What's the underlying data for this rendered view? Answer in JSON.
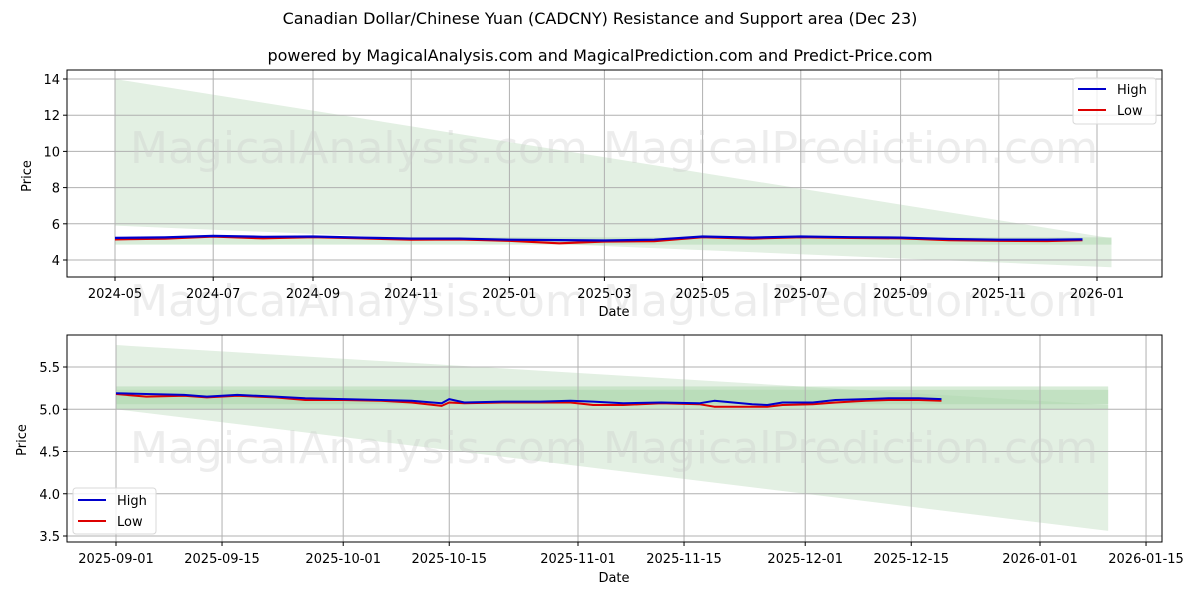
{
  "title": "Canadian Dollar/Chinese Yuan (CADCNY) Resistance and Support area (Dec 23)",
  "subtitle": "powered by MagicalAnalysis.com and MagicalPrediction.com and Predict-Price.com",
  "watermarks": [
    "MagicalAnalysis.com",
    "MagicalPrediction.com"
  ],
  "colors": {
    "high": "#0000cc",
    "low": "#dd0000",
    "band": "#c8e2c8",
    "grid": "#b0b0b0"
  },
  "legend": {
    "high": "High",
    "low": "Low"
  },
  "chart_data": [
    {
      "type": "line",
      "title": "Canadian Dollar/Chinese Yuan (CADCNY) Resistance and Support area (Dec 23)",
      "xlabel": "Date",
      "ylabel": "Price",
      "ylim": [
        3.0,
        14.5
      ],
      "yticks": [
        4,
        6,
        8,
        10,
        12,
        14
      ],
      "xticks": [
        "2024-05",
        "2024-07",
        "2024-09",
        "2024-11",
        "2025-01",
        "2025-03",
        "2025-05",
        "2025-07",
        "2025-09",
        "2025-11",
        "2026-01"
      ],
      "grid": true,
      "legend_position": "upper right",
      "x": [
        "2024-05-01",
        "2024-06-01",
        "2024-07-01",
        "2024-08-01",
        "2024-09-01",
        "2024-10-01",
        "2024-11-01",
        "2024-12-01",
        "2025-01-01",
        "2025-02-01",
        "2025-03-01",
        "2025-04-01",
        "2025-05-01",
        "2025-06-01",
        "2025-07-01",
        "2025-08-01",
        "2025-09-01",
        "2025-10-01",
        "2025-11-01",
        "2025-12-01",
        "2025-12-23"
      ],
      "series": [
        {
          "name": "High",
          "values": [
            5.22,
            5.25,
            5.33,
            5.28,
            5.3,
            5.24,
            5.18,
            5.18,
            5.12,
            5.1,
            5.08,
            5.12,
            5.3,
            5.24,
            5.3,
            5.26,
            5.24,
            5.16,
            5.12,
            5.12,
            5.14
          ]
        },
        {
          "name": "Low",
          "values": [
            5.14,
            5.18,
            5.3,
            5.2,
            5.26,
            5.2,
            5.12,
            5.14,
            5.06,
            4.92,
            5.02,
            5.04,
            5.26,
            5.18,
            5.26,
            5.22,
            5.2,
            5.1,
            5.06,
            5.05,
            5.1
          ]
        }
      ],
      "bands": [
        {
          "name": "resistance-support-wedge",
          "x_start": "2024-05-01",
          "x_end": "2026-01-10",
          "upper_start": 14.0,
          "upper_end": 5.2,
          "lower_start": 5.9,
          "lower_end": 3.6
        },
        {
          "name": "support-band",
          "x_start": "2024-05-01",
          "x_end": "2026-01-10",
          "upper": 5.25,
          "lower": 4.85
        }
      ]
    },
    {
      "type": "line",
      "title": "",
      "xlabel": "Date",
      "ylabel": "Price",
      "ylim": [
        3.45,
        5.88
      ],
      "yticks": [
        3.5,
        4.0,
        4.5,
        5.0,
        5.5
      ],
      "xticks": [
        "2025-09-01",
        "2025-09-15",
        "2025-10-01",
        "2025-10-15",
        "2025-11-01",
        "2025-11-15",
        "2025-12-01",
        "2025-12-15",
        "2026-01-01",
        "2026-01-15"
      ],
      "grid": true,
      "legend_position": "lower left",
      "x": [
        "2025-09-01",
        "2025-09-05",
        "2025-09-10",
        "2025-09-13",
        "2025-09-17",
        "2025-09-22",
        "2025-09-26",
        "2025-10-01",
        "2025-10-06",
        "2025-10-10",
        "2025-10-14",
        "2025-10-15",
        "2025-10-17",
        "2025-10-22",
        "2025-10-27",
        "2025-10-31",
        "2025-11-03",
        "2025-11-07",
        "2025-11-12",
        "2025-11-17",
        "2025-11-19",
        "2025-11-24",
        "2025-11-26",
        "2025-11-28",
        "2025-12-02",
        "2025-12-05",
        "2025-12-09",
        "2025-12-12",
        "2025-12-16",
        "2025-12-19"
      ],
      "series": [
        {
          "name": "High",
          "values": [
            5.19,
            5.18,
            5.17,
            5.15,
            5.17,
            5.15,
            5.13,
            5.12,
            5.11,
            5.1,
            5.07,
            5.12,
            5.08,
            5.09,
            5.09,
            5.1,
            5.09,
            5.07,
            5.08,
            5.07,
            5.1,
            5.06,
            5.05,
            5.08,
            5.08,
            5.11,
            5.12,
            5.13,
            5.13,
            5.12
          ]
        },
        {
          "name": "Low",
          "values": [
            5.18,
            5.15,
            5.16,
            5.14,
            5.16,
            5.14,
            5.11,
            5.11,
            5.1,
            5.08,
            5.04,
            5.08,
            5.07,
            5.08,
            5.08,
            5.08,
            5.05,
            5.05,
            5.07,
            5.06,
            5.03,
            5.03,
            5.03,
            5.05,
            5.06,
            5.08,
            5.1,
            5.11,
            5.11,
            5.1
          ]
        }
      ],
      "bands": [
        {
          "name": "resistance-support-wedge",
          "x_start": "2025-09-01",
          "x_end": "2026-01-10",
          "upper_start": 5.76,
          "upper_end": 5.05,
          "lower_start": 5.0,
          "lower_end": 3.56
        },
        {
          "name": "support-band-outer",
          "x_start": "2025-09-01",
          "x_end": "2026-01-10",
          "upper": 5.27,
          "lower": 5.0
        },
        {
          "name": "support-band-inner",
          "x_start": "2025-09-01",
          "x_end": "2026-01-10",
          "upper": 5.23,
          "lower": 5.06
        }
      ]
    }
  ]
}
